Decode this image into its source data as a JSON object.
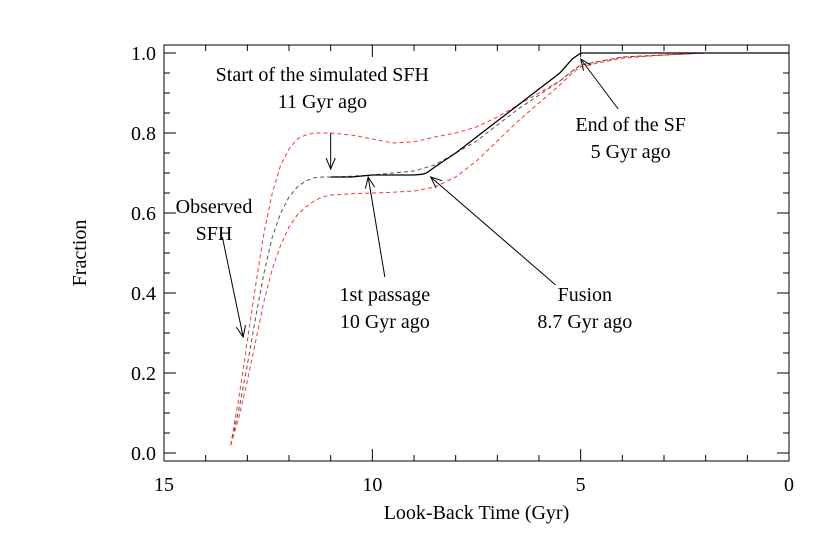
{
  "chart_data": {
    "type": "line",
    "title": "",
    "xlabel": "Look-Back Time (Gyr)",
    "ylabel": "Fraction",
    "xlim": [
      15,
      0
    ],
    "ylim": [
      -0.02,
      1.02
    ],
    "x_reversed": true,
    "grid": false,
    "xticks": [
      15,
      10,
      5,
      0
    ],
    "yticks": [
      0.0,
      0.2,
      0.4,
      0.6,
      0.8,
      1.0
    ],
    "xtick_labels": [
      "15",
      "10",
      "5",
      "0"
    ],
    "ytick_labels": [
      "0.0",
      "0.2",
      "0.4",
      "0.6",
      "0.8",
      "1.0"
    ],
    "series": [
      {
        "style": "dashed",
        "color": "#ff3333",
        "x": [
          13.4,
          13.2,
          13.0,
          12.8,
          12.6,
          12.4,
          12.2,
          12.0,
          11.8,
          11.6,
          11.4,
          11.2,
          11.0,
          10.5,
          10.0,
          9.5,
          9.0,
          8.5,
          8.0,
          7.5,
          7.0,
          6.5,
          6.0,
          5.5,
          5.2,
          5.0,
          4.5,
          4.0,
          3.0,
          2.0,
          1.0,
          0.0
        ],
        "y": [
          0.02,
          0.14,
          0.28,
          0.42,
          0.55,
          0.65,
          0.72,
          0.76,
          0.785,
          0.795,
          0.8,
          0.8,
          0.8,
          0.795,
          0.785,
          0.775,
          0.778,
          0.79,
          0.8,
          0.815,
          0.84,
          0.87,
          0.9,
          0.93,
          0.955,
          0.97,
          0.98,
          0.99,
          0.995,
          1.0,
          1.0,
          1.0
        ]
      },
      {
        "style": "dashed",
        "color": "#555555",
        "x": [
          13.4,
          13.2,
          13.0,
          12.8,
          12.6,
          12.4,
          12.2,
          12.0,
          11.8,
          11.6,
          11.4,
          11.2,
          11.0,
          10.5,
          10.0,
          9.5,
          9.0,
          8.5,
          8.0,
          7.5,
          7.0,
          6.5,
          6.0,
          5.5,
          5.2,
          5.0,
          4.5,
          4.0,
          3.0,
          2.0,
          1.0,
          0.0
        ],
        "y": [
          0.02,
          0.11,
          0.22,
          0.34,
          0.45,
          0.54,
          0.6,
          0.64,
          0.665,
          0.68,
          0.688,
          0.69,
          0.69,
          0.692,
          0.695,
          0.7,
          0.705,
          0.72,
          0.75,
          0.78,
          0.82,
          0.86,
          0.895,
          0.93,
          0.955,
          0.97,
          0.98,
          0.99,
          0.995,
          1.0,
          1.0,
          1.0
        ]
      },
      {
        "style": "dashed",
        "color": "#ff3333",
        "x": [
          13.4,
          13.2,
          13.0,
          12.8,
          12.6,
          12.4,
          12.2,
          12.0,
          11.8,
          11.6,
          11.4,
          11.2,
          11.0,
          10.5,
          10.0,
          9.5,
          9.0,
          8.5,
          8.0,
          7.5,
          7.0,
          6.5,
          6.0,
          5.5,
          5.2,
          5.0,
          4.5,
          4.0,
          3.0,
          2.0,
          1.0,
          0.0
        ],
        "y": [
          0.02,
          0.09,
          0.18,
          0.28,
          0.38,
          0.46,
          0.52,
          0.565,
          0.595,
          0.615,
          0.63,
          0.64,
          0.645,
          0.648,
          0.65,
          0.652,
          0.655,
          0.665,
          0.69,
          0.73,
          0.78,
          0.83,
          0.875,
          0.92,
          0.95,
          0.965,
          0.977,
          0.987,
          0.995,
          1.0,
          1.0,
          1.0
        ]
      },
      {
        "style": "solid",
        "color": "#000000",
        "x": [
          11.0,
          10.5,
          10.0,
          9.5,
          9.0,
          8.8,
          8.7,
          8.5,
          8.0,
          7.5,
          7.0,
          6.5,
          6.0,
          5.5,
          5.2,
          5.0
        ],
        "y": [
          0.69,
          0.69,
          0.695,
          0.695,
          0.695,
          0.697,
          0.7,
          0.715,
          0.75,
          0.79,
          0.83,
          0.87,
          0.91,
          0.95,
          0.985,
          1.0
        ]
      },
      {
        "style": "solid",
        "color": "#000000",
        "x": [
          5.0,
          4.0,
          3.0,
          2.0,
          1.0,
          0.0
        ],
        "y": [
          1.0,
          1.0,
          1.0,
          1.0,
          1.0,
          1.0
        ]
      }
    ],
    "annotations": [
      {
        "lines": [
          "Start of the simulated SFH",
          "11 Gyr ago"
        ],
        "text_at": [
          11.2,
          0.93
        ],
        "arrow_from": [
          11.0,
          0.8
        ],
        "arrow_to": [
          11.0,
          0.71
        ]
      },
      {
        "lines": [
          "Observed",
          "SFH"
        ],
        "text_at": [
          13.8,
          0.6
        ],
        "arrow_from": [
          13.6,
          0.54
        ],
        "arrow_to": [
          13.1,
          0.29
        ]
      },
      {
        "lines": [
          "1st passage",
          "10 Gyr ago"
        ],
        "text_at": [
          9.7,
          0.38
        ],
        "arrow_from": [
          9.7,
          0.44
        ],
        "arrow_to": [
          10.1,
          0.69
        ]
      },
      {
        "lines": [
          "Fusion",
          "8.7 Gyr ago"
        ],
        "text_at": [
          4.9,
          0.38
        ],
        "arrow_from": [
          5.6,
          0.42
        ],
        "arrow_to": [
          8.6,
          0.69
        ]
      },
      {
        "lines": [
          "End of the SF",
          "5 Gyr ago"
        ],
        "text_at": [
          3.8,
          0.805
        ],
        "arrow_from": [
          4.1,
          0.86
        ],
        "arrow_to": [
          5.0,
          0.985
        ]
      }
    ]
  }
}
